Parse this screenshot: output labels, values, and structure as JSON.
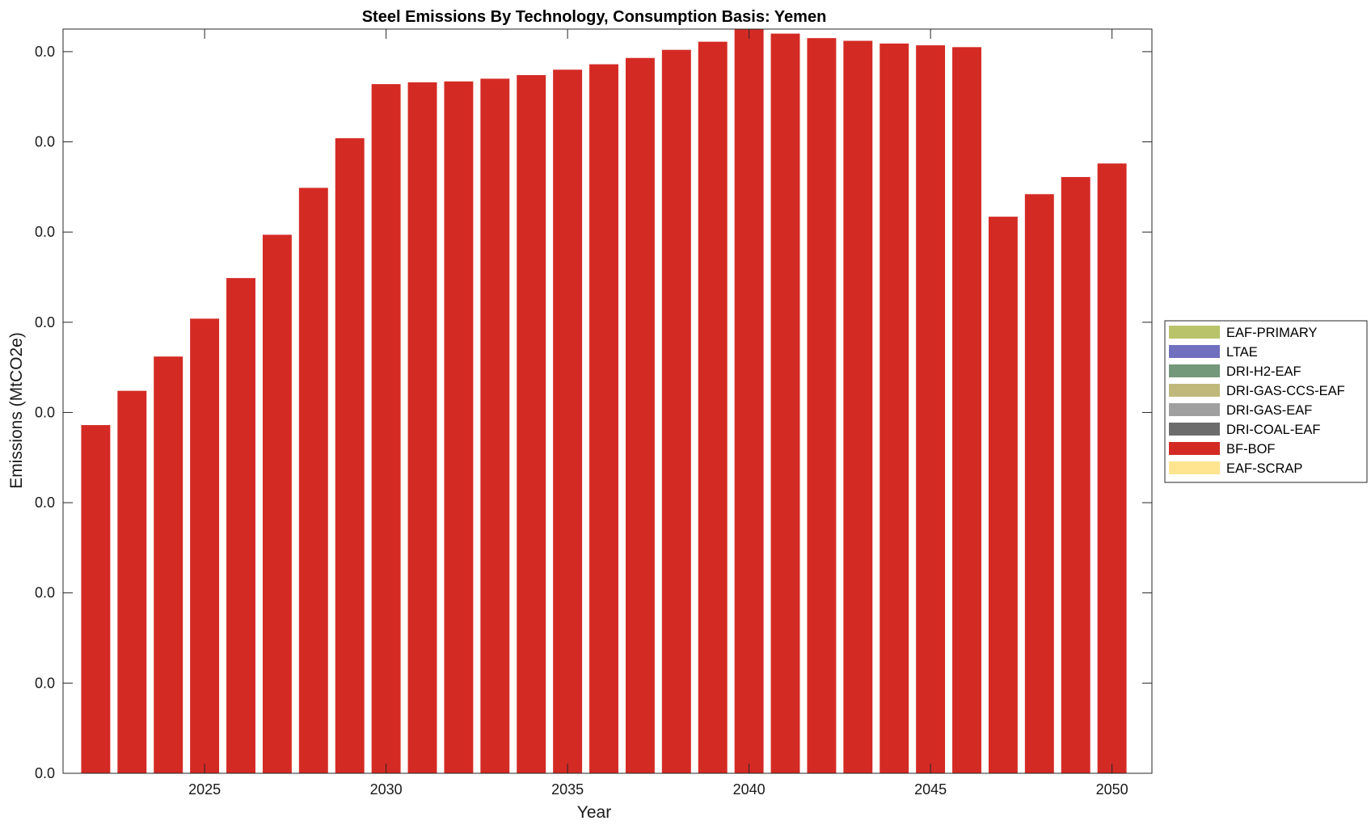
{
  "chart_data": {
    "type": "bar",
    "stacked": true,
    "title": "Steel Emissions By Technology, Consumption Basis: Yemen",
    "xlabel": "Year",
    "ylabel": "Emissions (MtCO2e)",
    "x": [
      2022,
      2023,
      2024,
      2025,
      2026,
      2027,
      2028,
      2029,
      2030,
      2031,
      2032,
      2033,
      2034,
      2035,
      2036,
      2037,
      2038,
      2039,
      2040,
      2041,
      2042,
      2043,
      2044,
      2045,
      2046,
      2047,
      2048,
      2049,
      2050
    ],
    "xlim": [
      2021.1,
      2051.1
    ],
    "xticks": [
      2025,
      2030,
      2035,
      2040,
      2045,
      2050
    ],
    "ylim": [
      0,
      0.0825
    ],
    "yticks": [
      0,
      0.01,
      0.02,
      0.03,
      0.04,
      0.05,
      0.06,
      0.07,
      0.08
    ],
    "ytick_labels": [
      "0.0",
      "0.0",
      "0.0",
      "0.0",
      "0.0",
      "0.0",
      "0.0",
      "0.0",
      "0.0"
    ],
    "legend_position": "outside-right",
    "grid": false,
    "series": [
      {
        "name": "EAF-PRIMARY",
        "color": "#b8c36a",
        "values": [
          0,
          0,
          0,
          0,
          0,
          0,
          0,
          0,
          0,
          0,
          0,
          0,
          0,
          0,
          0,
          0,
          0,
          0,
          0,
          0,
          0,
          0,
          0,
          0,
          0,
          0,
          0,
          0,
          0
        ]
      },
      {
        "name": "LTAE",
        "color": "#7070bf",
        "values": [
          0,
          0,
          0,
          0,
          0,
          0,
          0,
          0,
          0,
          0,
          0,
          0,
          0,
          0,
          0,
          0,
          0,
          0,
          0,
          0,
          0,
          0,
          0,
          0,
          0,
          0,
          0,
          0,
          0
        ]
      },
      {
        "name": "DRI-H2-EAF",
        "color": "#74987a",
        "values": [
          0,
          0,
          0,
          0,
          0,
          0,
          0,
          0,
          0,
          0,
          0,
          0,
          0,
          0,
          0,
          0,
          0,
          0,
          0,
          0,
          0,
          0,
          0,
          0,
          0,
          0,
          0,
          0,
          0
        ]
      },
      {
        "name": "DRI-GAS-CCS-EAF",
        "color": "#c0b87a",
        "values": [
          0,
          0,
          0,
          0,
          0,
          0,
          0,
          0,
          0,
          0,
          0,
          0,
          0,
          0,
          0,
          0,
          0,
          0,
          0,
          0,
          0,
          0,
          0,
          0,
          0,
          0,
          0,
          0,
          0
        ]
      },
      {
        "name": "DRI-GAS-EAF",
        "color": "#a0a0a0",
        "values": [
          0,
          0,
          0,
          0,
          0,
          0,
          0,
          0,
          0,
          0,
          0,
          0,
          0,
          0,
          0,
          0,
          0,
          0,
          0,
          0,
          0,
          0,
          0,
          0,
          0,
          0,
          0,
          0,
          0
        ]
      },
      {
        "name": "DRI-COAL-EAF",
        "color": "#6c6c6c",
        "values": [
          0,
          0,
          0,
          0,
          0,
          0,
          0,
          0,
          0,
          0,
          0,
          0,
          0,
          0,
          0,
          0,
          0,
          0,
          0,
          0,
          0,
          0,
          0,
          0,
          0,
          0,
          0,
          0,
          0
        ]
      },
      {
        "name": "BF-BOF",
        "color": "#d42a24",
        "values": [
          0.0386,
          0.0424,
          0.0462,
          0.0504,
          0.0549,
          0.0597,
          0.0649,
          0.0704,
          0.0764,
          0.0766,
          0.0767,
          0.077,
          0.0774,
          0.078,
          0.0786,
          0.0793,
          0.0802,
          0.0811,
          0.0825,
          0.082,
          0.0815,
          0.0812,
          0.0809,
          0.0807,
          0.0805,
          0.0617,
          0.0642,
          0.0661,
          0.0676
        ]
      },
      {
        "name": "EAF-SCRAP",
        "color": "#ffe590",
        "values": [
          0,
          0,
          0,
          0,
          0,
          0,
          0,
          0,
          0,
          0,
          0,
          0,
          0,
          0,
          0,
          0,
          0,
          0,
          0,
          0,
          0,
          0,
          0,
          0,
          0,
          0,
          0,
          0,
          0
        ]
      }
    ]
  }
}
